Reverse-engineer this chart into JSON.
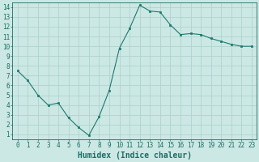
{
  "x": [
    0,
    1,
    2,
    3,
    4,
    5,
    6,
    7,
    8,
    9,
    10,
    11,
    12,
    13,
    14,
    15,
    16,
    17,
    18,
    19,
    20,
    21,
    22,
    23
  ],
  "y": [
    7.5,
    6.5,
    5.0,
    4.0,
    4.2,
    2.7,
    1.7,
    0.9,
    2.8,
    5.5,
    9.8,
    11.8,
    14.2,
    13.6,
    13.5,
    12.2,
    11.2,
    11.3,
    11.2,
    10.8,
    10.5,
    10.2,
    10.0,
    10.0
  ],
  "line_color": "#1a7a6e",
  "marker": "s",
  "marker_size": 2,
  "bg_color": "#cce8e4",
  "grid_color": "#aacfcb",
  "xlabel": "Humidex (Indice chaleur)",
  "xlim": [
    -0.5,
    23.5
  ],
  "ylim": [
    0.5,
    14.5
  ],
  "xticks": [
    0,
    1,
    2,
    3,
    4,
    5,
    6,
    7,
    8,
    9,
    10,
    11,
    12,
    13,
    14,
    15,
    16,
    17,
    18,
    19,
    20,
    21,
    22,
    23
  ],
  "yticks": [
    1,
    2,
    3,
    4,
    5,
    6,
    7,
    8,
    9,
    10,
    11,
    12,
    13,
    14
  ],
  "tick_color": "#1a6e64",
  "label_color": "#1a6e64",
  "font_size_tick": 5.5,
  "font_size_label": 7.0
}
